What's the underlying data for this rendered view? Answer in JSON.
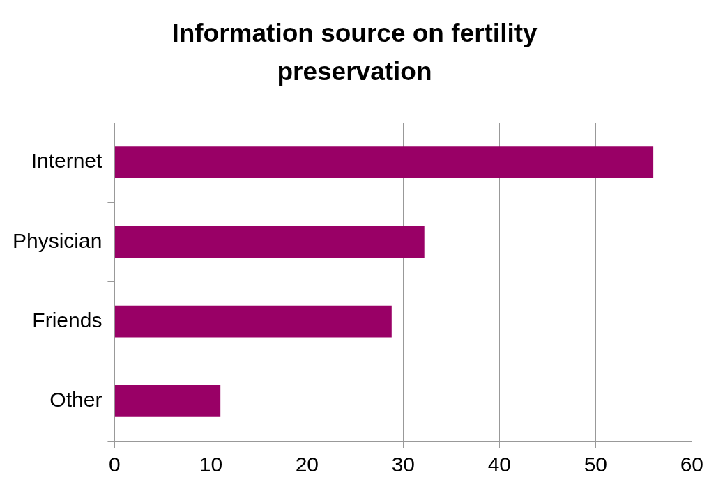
{
  "chart_data": {
    "type": "bar",
    "orientation": "horizontal",
    "title": "Information source on fertility preservation",
    "categories": [
      "Internet",
      "Physician",
      "Friends",
      "Other"
    ],
    "values": [
      56,
      32.2,
      28.8,
      11
    ],
    "color": "#990066",
    "xlim": [
      0,
      60
    ],
    "xticks": [
      0,
      10,
      20,
      30,
      40,
      50,
      60
    ],
    "grid": "x",
    "legend": false
  }
}
